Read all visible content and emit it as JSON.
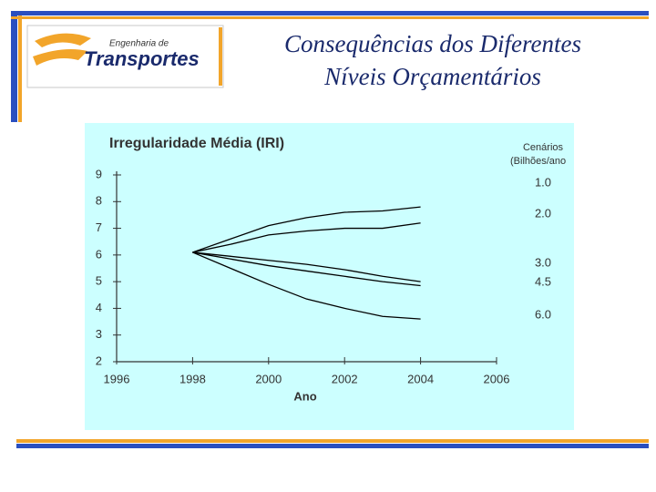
{
  "slide": {
    "title": [
      "Consequências dos Diferentes",
      "Níveis Orçamentários"
    ]
  },
  "logo": {
    "subtitle": "Engenharia de",
    "name": "Transportes"
  },
  "chart_data": {
    "type": "line",
    "title": "Irregularidade Média (IRI)",
    "x_label": "Ano",
    "legend_title": [
      "Cenários",
      "(Bilhões/ano"
    ],
    "x": [
      1998,
      1999,
      2000,
      2001,
      2002,
      2003,
      2004
    ],
    "series": [
      {
        "name": "1.0",
        "color": "#000000",
        "values": [
          6.1,
          6.6,
          7.1,
          7.4,
          7.6,
          7.65,
          7.8
        ]
      },
      {
        "name": "2.0",
        "color": "#000000",
        "values": [
          6.1,
          6.4,
          6.75,
          6.9,
          7.0,
          7.0,
          7.2
        ]
      },
      {
        "name": "3.0",
        "color": "#000000",
        "values": [
          6.1,
          5.95,
          5.8,
          5.65,
          5.45,
          5.2,
          5.0
        ]
      },
      {
        "name": "4.5",
        "color": "#000000",
        "values": [
          6.1,
          5.85,
          5.6,
          5.4,
          5.2,
          5.0,
          4.85
        ]
      },
      {
        "name": "6.0",
        "color": "#000000",
        "values": [
          6.1,
          5.5,
          4.9,
          4.35,
          4.0,
          3.7,
          3.6
        ]
      }
    ],
    "xlim": [
      1996,
      2006
    ],
    "xticks": [
      1996,
      1998,
      2000,
      2002,
      2004,
      2006
    ],
    "ylim": [
      2,
      9
    ],
    "yticks": [
      2,
      3,
      4,
      5,
      6,
      7,
      8,
      9
    ],
    "grid": false
  }
}
